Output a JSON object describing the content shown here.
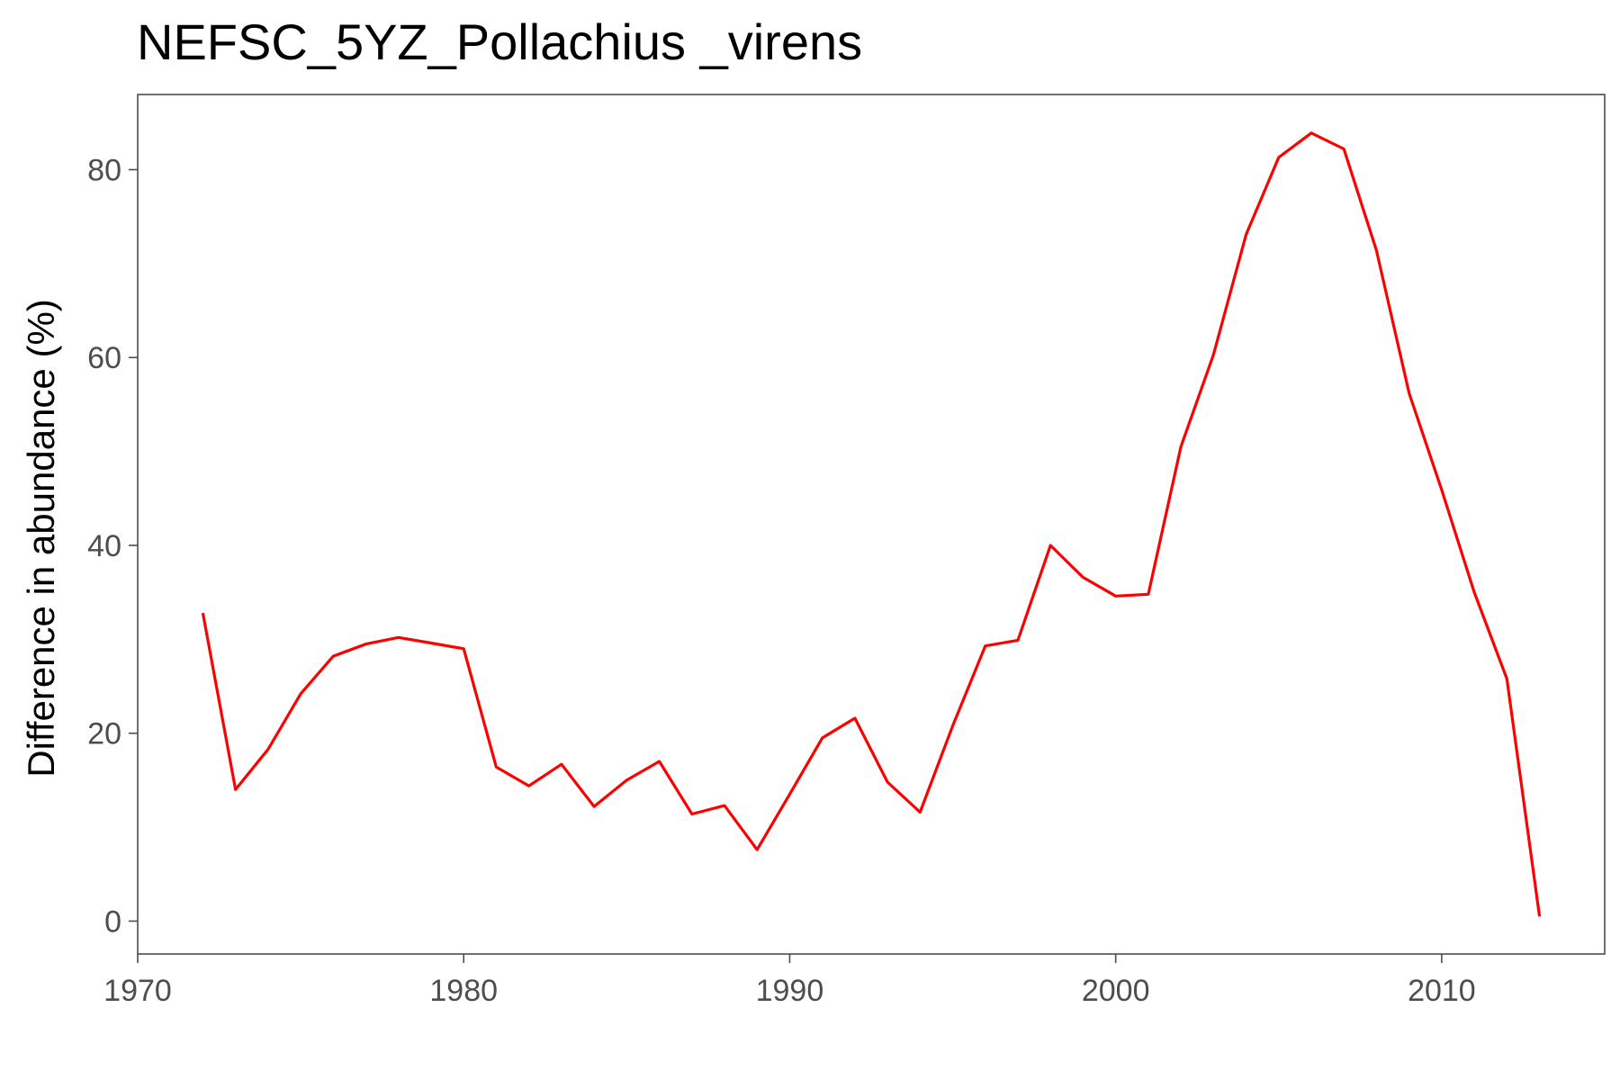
{
  "chart_data": {
    "type": "line",
    "title": "NEFSC_5YZ_Pollachius _virens",
    "xlabel": "",
    "ylabel": "Difference in abundance (%)",
    "xlim": [
      1970,
      2015
    ],
    "ylim": [
      -3.5,
      88
    ],
    "x_ticks": [
      1970,
      1980,
      1990,
      2000,
      2010
    ],
    "y_ticks": [
      0,
      20,
      40,
      60,
      80
    ],
    "grid": false,
    "line_color": "#ff0000",
    "series": [
      {
        "x": [
          1972,
          1973,
          1974,
          1975,
          1976,
          1977,
          1978,
          1979,
          1980,
          1981,
          1982,
          1983,
          1984,
          1985,
          1986,
          1987,
          1988,
          1989,
          1990,
          1991,
          1992,
          1993,
          1994,
          1995,
          1996,
          1997,
          1998,
          1999,
          2000,
          2001,
          2002,
          2003,
          2004,
          2005,
          2006,
          2007,
          2008,
          2009,
          2010,
          2011,
          2012,
          2013
        ],
        "y": [
          32.8,
          14.0,
          18.3,
          24.2,
          28.2,
          29.5,
          30.2,
          29.6,
          29.0,
          16.4,
          14.4,
          16.7,
          12.2,
          15.0,
          17.0,
          11.4,
          12.3,
          7.6,
          13.5,
          19.5,
          21.6,
          14.8,
          11.6,
          20.8,
          29.3,
          29.9,
          40.0,
          36.6,
          34.6,
          34.8,
          50.5,
          60.3,
          73.1,
          81.3,
          83.9,
          82.2,
          71.4,
          56.2,
          45.9,
          35.0,
          25.8,
          0.5
        ]
      }
    ]
  }
}
